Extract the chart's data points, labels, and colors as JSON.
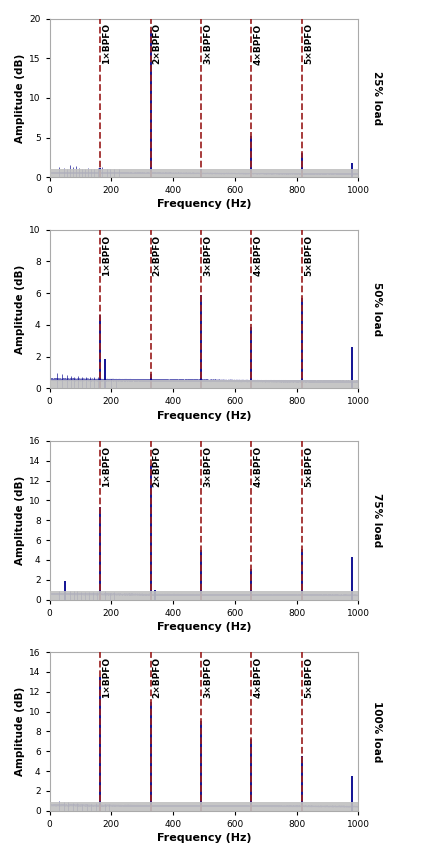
{
  "bpfo": 163.4,
  "harmonics": [
    1,
    2,
    3,
    4,
    5
  ],
  "xlim": [
    0,
    1000
  ],
  "xlabel": "Frequency (Hz)",
  "ylabel": "Amplitude (dB)",
  "dashed_color": "#9B2020",
  "signal_color": "#00008B",
  "bg_color": "#ffffff",
  "subplots": [
    {
      "label": "25% load",
      "ylim": [
        0,
        20
      ],
      "yticks": [
        0,
        5,
        10,
        15,
        20
      ],
      "peaks": [
        {
          "freq": 327.0,
          "amp": 18.5
        },
        {
          "freq": 653.4,
          "amp": 5.2
        },
        {
          "freq": 817.0,
          "amp": 3.0
        },
        {
          "freq": 163.4,
          "amp": 1.2
        },
        {
          "freq": 490.0,
          "amp": 1.1
        },
        {
          "freq": 980.0,
          "amp": 1.8
        }
      ],
      "small_peaks": [
        {
          "freq": 30,
          "amp": 1.3
        },
        {
          "freq": 45,
          "amp": 1.2
        },
        {
          "freq": 55,
          "amp": 1.1
        },
        {
          "freq": 65,
          "amp": 1.5
        },
        {
          "freq": 75,
          "amp": 1.3
        },
        {
          "freq": 85,
          "amp": 1.4
        },
        {
          "freq": 95,
          "amp": 1.2
        },
        {
          "freq": 105,
          "amp": 1.1
        },
        {
          "freq": 115,
          "amp": 1.0
        },
        {
          "freq": 125,
          "amp": 1.2
        },
        {
          "freq": 135,
          "amp": 1.1
        },
        {
          "freq": 145,
          "amp": 1.0
        },
        {
          "freq": 155,
          "amp": 1.2
        },
        {
          "freq": 170,
          "amp": 1.3
        },
        {
          "freq": 185,
          "amp": 1.0
        },
        {
          "freq": 195,
          "amp": 1.1
        },
        {
          "freq": 210,
          "amp": 1.0
        },
        {
          "freq": 225,
          "amp": 1.0
        }
      ]
    },
    {
      "label": "50% load",
      "ylim": [
        0,
        10
      ],
      "yticks": [
        0,
        2,
        4,
        6,
        8,
        10
      ],
      "peaks": [
        {
          "freq": 163.4,
          "amp": 4.6
        },
        {
          "freq": 490.0,
          "amp": 5.9
        },
        {
          "freq": 653.4,
          "amp": 3.9
        },
        {
          "freq": 817.0,
          "amp": 5.7
        },
        {
          "freq": 980.0,
          "amp": 2.6
        },
        {
          "freq": 327.0,
          "amp": 0.9
        },
        {
          "freq": 180,
          "amp": 1.85
        }
      ],
      "small_peaks": [
        {
          "freq": 25,
          "amp": 1.0
        },
        {
          "freq": 40,
          "amp": 0.9
        },
        {
          "freq": 55,
          "amp": 0.85
        },
        {
          "freq": 68,
          "amp": 0.8
        },
        {
          "freq": 80,
          "amp": 0.75
        },
        {
          "freq": 92,
          "amp": 0.8
        },
        {
          "freq": 105,
          "amp": 0.7
        },
        {
          "freq": 118,
          "amp": 0.7
        },
        {
          "freq": 130,
          "amp": 0.75
        },
        {
          "freq": 142,
          "amp": 0.7
        },
        {
          "freq": 155,
          "amp": 0.75
        },
        {
          "freq": 200,
          "amp": 0.6
        },
        {
          "freq": 215,
          "amp": 0.55
        }
      ]
    },
    {
      "label": "75% load",
      "ylim": [
        0,
        16
      ],
      "yticks": [
        0,
        2,
        4,
        6,
        8,
        10,
        12,
        14,
        16
      ],
      "peaks": [
        {
          "freq": 163.4,
          "amp": 9.3
        },
        {
          "freq": 327.0,
          "amp": 13.6
        },
        {
          "freq": 490.0,
          "amp": 5.0
        },
        {
          "freq": 653.4,
          "amp": 3.1
        },
        {
          "freq": 817.0,
          "amp": 5.1
        },
        {
          "freq": 980.0,
          "amp": 4.3
        },
        {
          "freq": 50,
          "amp": 1.9
        },
        {
          "freq": 340,
          "amp": 1.0
        }
      ],
      "small_peaks": [
        {
          "freq": 30,
          "amp": 0.9
        },
        {
          "freq": 65,
          "amp": 0.85
        },
        {
          "freq": 78,
          "amp": 0.9
        },
        {
          "freq": 90,
          "amp": 0.85
        },
        {
          "freq": 103,
          "amp": 0.8
        },
        {
          "freq": 115,
          "amp": 0.8
        },
        {
          "freq": 128,
          "amp": 0.8
        },
        {
          "freq": 140,
          "amp": 0.8
        },
        {
          "freq": 153,
          "amp": 0.8
        },
        {
          "freq": 178,
          "amp": 0.85
        },
        {
          "freq": 195,
          "amp": 0.7
        },
        {
          "freq": 210,
          "amp": 0.75
        }
      ]
    },
    {
      "label": "100% load",
      "ylim": [
        0,
        16
      ],
      "yticks": [
        0,
        2,
        4,
        6,
        8,
        10,
        12,
        14,
        16
      ],
      "peaks": [
        {
          "freq": 163.4,
          "amp": 13.5
        },
        {
          "freq": 327.0,
          "amp": 11.0
        },
        {
          "freq": 490.0,
          "amp": 9.0
        },
        {
          "freq": 653.4,
          "amp": 7.2
        },
        {
          "freq": 817.0,
          "amp": 5.5
        },
        {
          "freq": 980.0,
          "amp": 3.5
        }
      ],
      "small_peaks": [
        {
          "freq": 30,
          "amp": 1.0
        },
        {
          "freq": 45,
          "amp": 0.9
        },
        {
          "freq": 60,
          "amp": 0.85
        },
        {
          "freq": 75,
          "amp": 0.8
        },
        {
          "freq": 90,
          "amp": 0.75
        },
        {
          "freq": 105,
          "amp": 0.7
        },
        {
          "freq": 120,
          "amp": 0.7
        },
        {
          "freq": 135,
          "amp": 0.7
        },
        {
          "freq": 150,
          "amp": 0.75
        },
        {
          "freq": 178,
          "amp": 0.7
        },
        {
          "freq": 192,
          "amp": 0.65
        }
      ]
    }
  ]
}
